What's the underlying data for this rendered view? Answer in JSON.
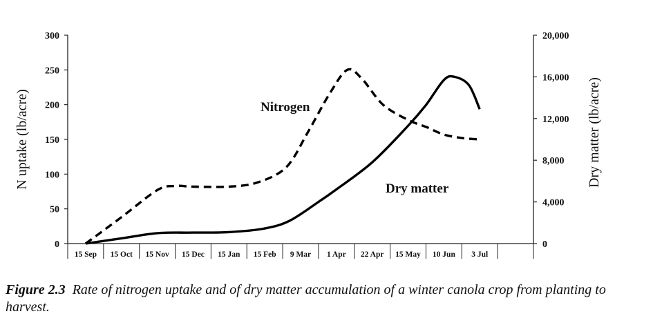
{
  "chart_data": {
    "type": "line",
    "categories": [
      "15 Sep",
      "15 Oct",
      "15 Nov",
      "15 Dec",
      "15 Jan",
      "15 Feb",
      "9 Mar",
      "1 Apr",
      "22 Apr",
      "15 May",
      "10 Jun",
      "3 Jul"
    ],
    "ylabel_left": "N uptake (lb/acre)",
    "ylabel_right": "Dry matter (lb/acre)",
    "ylim_left": [
      0,
      300
    ],
    "ylim_right": [
      0,
      20000
    ],
    "yticks_left": [
      "0",
      "50",
      "100",
      "150",
      "200",
      "250",
      "300"
    ],
    "yticks_right": [
      "0",
      "4,000",
      "8,000",
      "12,000",
      "16,000",
      "20,000"
    ],
    "series": [
      {
        "name": "Nitrogen",
        "axis": "left",
        "style": "dashed",
        "points": [
          [
            0.0,
            0
          ],
          [
            1.0,
            38
          ],
          [
            2.0,
            77
          ],
          [
            2.5,
            83
          ],
          [
            3.0,
            82
          ],
          [
            4.0,
            82
          ],
          [
            4.8,
            88
          ],
          [
            5.6,
            110
          ],
          [
            6.2,
            160
          ],
          [
            6.8,
            215
          ],
          [
            7.3,
            250
          ],
          [
            7.7,
            238
          ],
          [
            8.3,
            200
          ],
          [
            9.0,
            178
          ],
          [
            9.5,
            168
          ],
          [
            10.0,
            157
          ],
          [
            10.5,
            152
          ],
          [
            11.0,
            150
          ]
        ]
      },
      {
        "name": "Dry matter",
        "axis": "right",
        "style": "solid",
        "points": [
          [
            0.0,
            0
          ],
          [
            1.0,
            500
          ],
          [
            2.0,
            1000
          ],
          [
            3.0,
            1050
          ],
          [
            4.0,
            1100
          ],
          [
            5.0,
            1450
          ],
          [
            5.7,
            2200
          ],
          [
            6.5,
            4000
          ],
          [
            7.0,
            5200
          ],
          [
            8.0,
            7800
          ],
          [
            9.0,
            11300
          ],
          [
            9.5,
            13300
          ],
          [
            10.0,
            15700
          ],
          [
            10.3,
            16000
          ],
          [
            10.7,
            15200
          ],
          [
            11.0,
            12900
          ]
        ]
      }
    ],
    "annotations": [
      "Nitrogen",
      "Dry matter"
    ]
  },
  "caption": {
    "label": "Figure 2.3",
    "text": "Rate of nitrogen uptake and of dry matter accumulation of a winter canola crop from planting to harvest."
  }
}
